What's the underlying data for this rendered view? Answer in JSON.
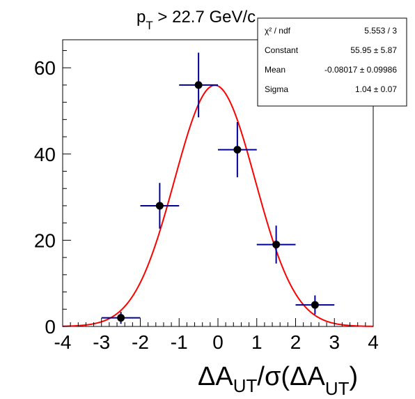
{
  "chart_data": {
    "type": "scatter",
    "title": {
      "p": "p",
      "sub_T": "T",
      "rest": " > 22.7 GeV/c"
    },
    "xlabel": {
      "delta1": "ΔA",
      "sub1": "UT",
      "mid": "/σ(ΔA",
      "sub2": "UT",
      "close": ")"
    },
    "ylabel": "",
    "xlim": [
      -4,
      4
    ],
    "ylim": [
      0,
      66.5
    ],
    "x_ticks": [
      -4,
      -3,
      -2,
      -1,
      0,
      1,
      2,
      3,
      4
    ],
    "x_tick_labels": [
      "-4",
      "-3",
      "-2",
      "-1",
      "0",
      "1",
      "2",
      "3",
      "4"
    ],
    "y_ticks": [
      0,
      20,
      40,
      60
    ],
    "y_tick_labels": [
      "0",
      "20",
      "40",
      "60"
    ],
    "points": [
      {
        "x": -2.5,
        "y": 2,
        "x_err": 0.5,
        "y_err": 1.4
      },
      {
        "x": -1.5,
        "y": 28,
        "x_err": 0.5,
        "y_err": 5.3
      },
      {
        "x": -0.5,
        "y": 56,
        "x_err": 0.5,
        "y_err": 7.5
      },
      {
        "x": 0.5,
        "y": 41,
        "x_err": 0.5,
        "y_err": 6.4
      },
      {
        "x": 1.5,
        "y": 19,
        "x_err": 0.5,
        "y_err": 4.4
      },
      {
        "x": 2.5,
        "y": 5,
        "x_err": 0.5,
        "y_err": 2.2
      }
    ],
    "fit": {
      "function": "gaussian",
      "constant": 55.95,
      "mean": -0.08017,
      "sigma": 1.04,
      "color": "#ff0000"
    },
    "marker_color": "#000000",
    "error_bar_color": "#000099",
    "grid": false,
    "stats_box": {
      "placement": "top-right",
      "rows": [
        {
          "label": "χ² / ndf",
          "value": "5.553 / 3"
        },
        {
          "label": "Constant",
          "value": "55.95 ± 5.87"
        },
        {
          "label": "Mean",
          "value": "-0.08017 ± 0.09986"
        },
        {
          "label": "Sigma",
          "value": "1.04 ± 0.07"
        }
      ]
    }
  }
}
